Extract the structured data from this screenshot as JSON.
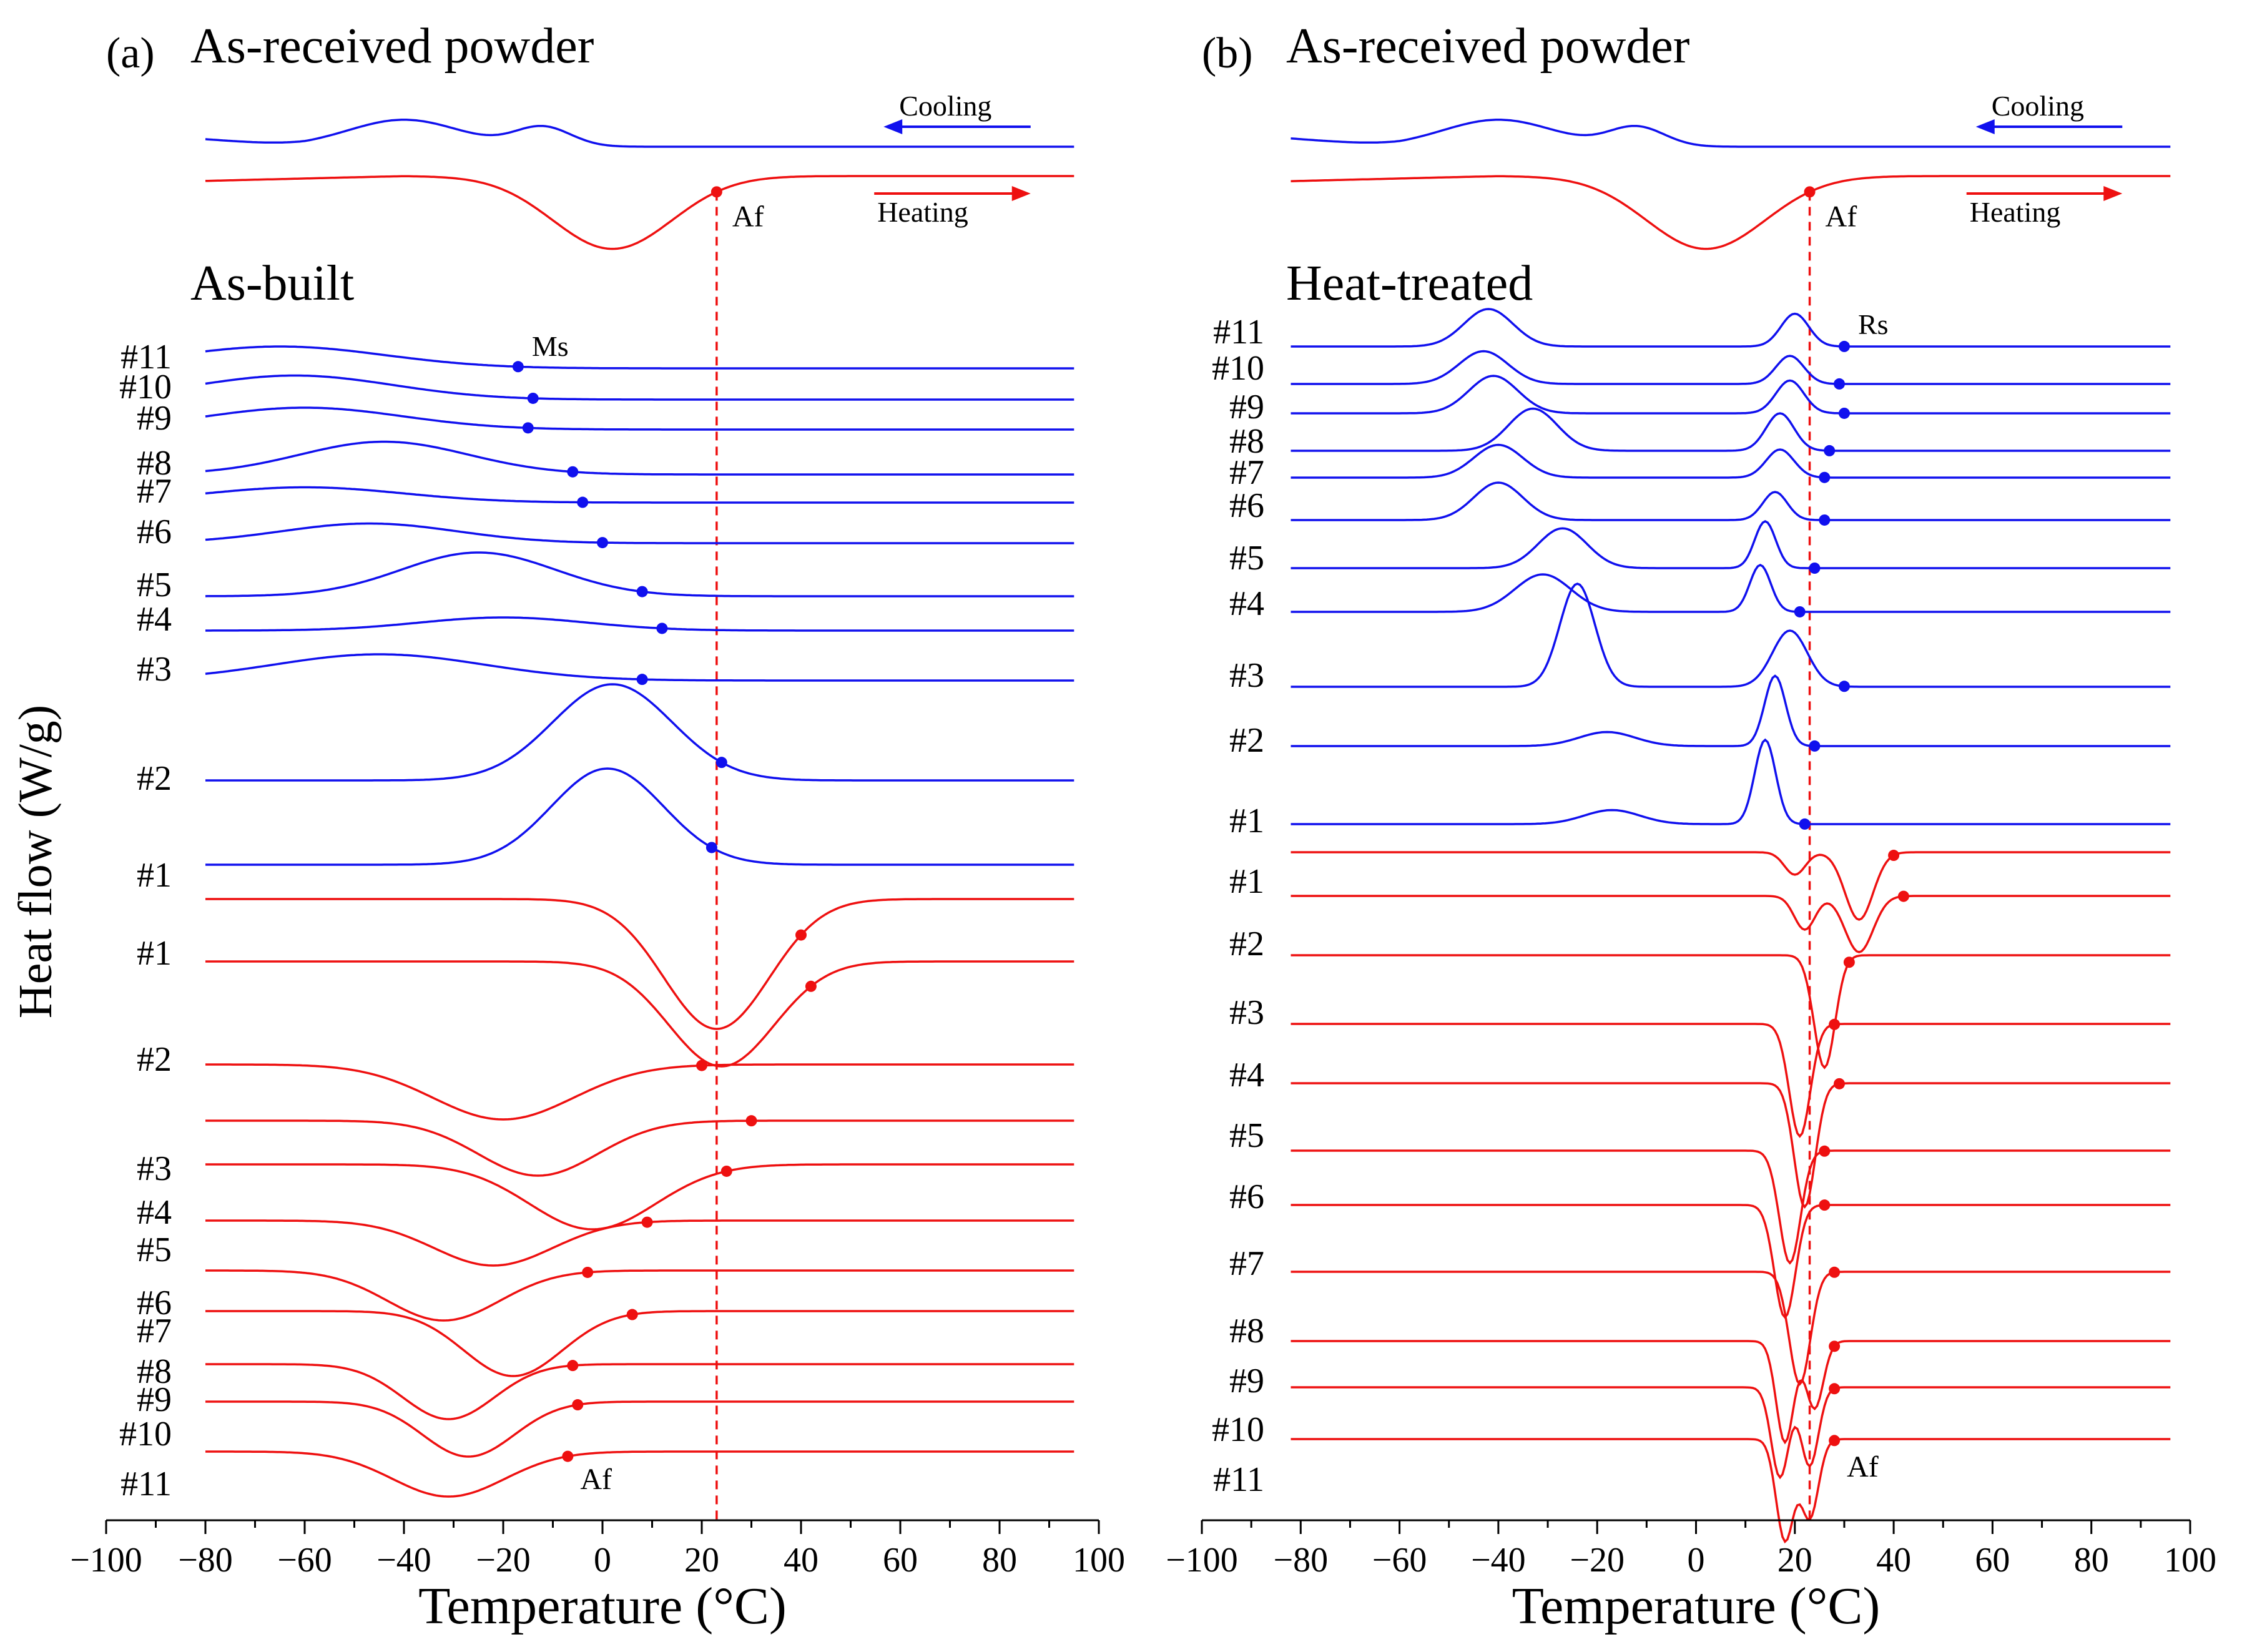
{
  "figure": {
    "ylabel": "Heat flow (W/g)",
    "colors": {
      "cooling": "#1010ee",
      "heating": "#ee1010",
      "reference": "#ee1010"
    }
  },
  "chart_data": [
    {
      "type": "line",
      "panel_label": "(a)",
      "title": "As-received powder",
      "sample_group_label": "As-built",
      "xlabel": "Temperature (°C)",
      "ylabel": "Heat flow (W/g)",
      "xlim": [
        -100,
        100
      ],
      "xticks": [
        "−100",
        "−80",
        "−60",
        "−40",
        "−20",
        "0",
        "20",
        "40",
        "60",
        "80",
        "100"
      ],
      "reference_line_temperature": 23,
      "legend": {
        "cooling_label": "Cooling",
        "heating_label": "Heating",
        "placement": "top-right"
      },
      "powder": {
        "cooling": {
          "peak_temperature": -40,
          "peak_width": 16,
          "shoulder_temperature": -12,
          "shoulder_width": 8,
          "shoulder_amplitude": 0.65,
          "amplitude": 0.9
        },
        "heating": {
          "peak_temperature": 2,
          "peak_width": 17,
          "amplitude": 1.8,
          "af_temperature": 23,
          "af_label": "Af"
        }
      },
      "cooling_series": [
        {
          "name": "#11",
          "peak_temperature": -65,
          "peak_width": 30,
          "amplitude": 0.5,
          "ms_temperature": -17
        },
        {
          "name": "#10",
          "peak_temperature": -62,
          "peak_width": 28,
          "amplitude": 0.55,
          "ms_temperature": -14
        },
        {
          "name": "#9",
          "peak_temperature": -60,
          "peak_width": 28,
          "amplitude": 0.5,
          "ms_temperature": -15
        },
        {
          "name": "#8",
          "peak_temperature": -44,
          "peak_width": 24,
          "amplitude": 0.75,
          "ms_temperature": -6
        },
        {
          "name": "#7",
          "peak_temperature": -60,
          "peak_width": 28,
          "amplitude": 0.35,
          "ms_temperature": -4
        },
        {
          "name": "#6",
          "peak_temperature": -47,
          "peak_width": 25,
          "amplitude": 0.45,
          "ms_temperature": 0
        },
        {
          "name": "#5",
          "peak_temperature": -25,
          "peak_width": 22,
          "amplitude": 1.0,
          "ms_temperature": 8
        },
        {
          "name": "#4",
          "peak_temperature": -20,
          "peak_width": 24,
          "amplitude": 0.3,
          "ms_temperature": 12
        },
        {
          "name": "#3",
          "peak_temperature": -45,
          "peak_width": 30,
          "amplitude": 0.6,
          "ms_temperature": 8
        },
        {
          "name": "#2",
          "peak_temperature": 2,
          "peak_width": 17,
          "amplitude": 2.2,
          "ms_temperature": 24
        },
        {
          "name": "#1",
          "peak_temperature": 1,
          "peak_width": 16,
          "amplitude": 2.2,
          "ms_temperature": 22
        }
      ],
      "heating_series": [
        {
          "name": "#1",
          "peak_temperature": 23,
          "peak_width": 15,
          "amplitude": 2.6,
          "af_temperature": 40
        },
        {
          "name": "#2",
          "peak_temperature": 24,
          "peak_width": 15,
          "amplitude": 2.1,
          "af_temperature": 42
        },
        {
          "name": "#3",
          "peak_temperature": -20,
          "peak_width": 20,
          "amplitude": 1.1,
          "af_temperature": 20
        },
        {
          "name": "#4",
          "peak_temperature": -13,
          "peak_width": 17,
          "amplitude": 1.1,
          "af_temperature": 30
        },
        {
          "name": "#5",
          "peak_temperature": -2,
          "peak_width": 18,
          "amplitude": 1.3,
          "af_temperature": 25
        },
        {
          "name": "#6",
          "peak_temperature": -22,
          "peak_width": 17,
          "amplitude": 0.9,
          "af_temperature": 9
        },
        {
          "name": "#7",
          "peak_temperature": -32,
          "peak_width": 16,
          "amplitude": 1.0,
          "af_temperature": -3
        },
        {
          "name": "#8",
          "peak_temperature": -18,
          "peak_width": 14,
          "amplitude": 1.3,
          "af_temperature": 6
        },
        {
          "name": "#9",
          "peak_temperature": -31,
          "peak_width": 13,
          "amplitude": 1.1,
          "af_temperature": -6
        },
        {
          "name": "#10",
          "peak_temperature": -27,
          "peak_width": 13,
          "amplitude": 1.1,
          "af_temperature": -5
        },
        {
          "name": "#11",
          "peak_temperature": -31,
          "peak_width": 16,
          "amplitude": 0.9,
          "af_temperature": -7
        }
      ],
      "annotations": {
        "cooling_marker_label": "Ms",
        "heating_marker_label": "Af"
      }
    },
    {
      "type": "line",
      "panel_label": "(b)",
      "title": "As-received powder",
      "sample_group_label": "Heat-treated",
      "xlabel": "Temperature (°C)",
      "ylabel": "Heat flow (W/g)",
      "xlim": [
        -100,
        100
      ],
      "xticks": [
        "−100",
        "−80",
        "−60",
        "−40",
        "−20",
        "0",
        "20",
        "40",
        "60",
        "80",
        "100"
      ],
      "reference_line_temperature": 23,
      "legend": {
        "cooling_label": "Cooling",
        "heating_label": "Heating",
        "placement": "top-right"
      },
      "powder": {
        "cooling": {
          "peak_temperature": -40,
          "peak_width": 16,
          "shoulder_temperature": -12,
          "shoulder_width": 8,
          "shoulder_amplitude": 0.65,
          "amplitude": 0.9
        },
        "heating": {
          "peak_temperature": 2,
          "peak_width": 17,
          "amplitude": 1.8,
          "af_temperature": 23,
          "af_label": "Af"
        }
      },
      "cooling_series": [
        {
          "name": "#11",
          "peaks": [
            {
              "temperature": -42,
              "width": 7,
              "amplitude": 0.8
            },
            {
              "temperature": 20,
              "width": 4,
              "amplitude": 0.7
            }
          ],
          "rs_temperature": 30
        },
        {
          "name": "#10",
          "peaks": [
            {
              "temperature": -43,
              "width": 7,
              "amplitude": 0.7
            },
            {
              "temperature": 19,
              "width": 4,
              "amplitude": 0.6
            }
          ],
          "rs_temperature": 29
        },
        {
          "name": "#9",
          "peaks": [
            {
              "temperature": -41,
              "width": 7,
              "amplitude": 0.8
            },
            {
              "temperature": 19,
              "width": 4,
              "amplitude": 0.7
            }
          ],
          "rs_temperature": 30
        },
        {
          "name": "#8",
          "peaks": [
            {
              "temperature": -33,
              "width": 7,
              "amplitude": 0.9
            },
            {
              "temperature": 17,
              "width": 4,
              "amplitude": 0.8
            }
          ],
          "rs_temperature": 27
        },
        {
          "name": "#7",
          "peaks": [
            {
              "temperature": -40,
              "width": 7,
              "amplitude": 0.7
            },
            {
              "temperature": 17,
              "width": 4,
              "amplitude": 0.6
            }
          ],
          "rs_temperature": 26
        },
        {
          "name": "#6",
          "peaks": [
            {
              "temperature": -40,
              "width": 7,
              "amplitude": 0.8
            },
            {
              "temperature": 16,
              "width": 3.5,
              "amplitude": 0.6
            }
          ],
          "rs_temperature": 26
        },
        {
          "name": "#5",
          "peaks": [
            {
              "temperature": -27,
              "width": 7,
              "amplitude": 0.85
            },
            {
              "temperature": 14,
              "width": 3,
              "amplitude": 1.0
            }
          ],
          "rs_temperature": 24
        },
        {
          "name": "#4",
          "peaks": [
            {
              "temperature": -31,
              "width": 8,
              "amplitude": 0.8
            },
            {
              "temperature": 13,
              "width": 3,
              "amplitude": 1.0
            }
          ],
          "rs_temperature": 21
        },
        {
          "name": "#3",
          "peaks": [
            {
              "temperature": -24,
              "width": 5,
              "amplitude": 2.2
            },
            {
              "temperature": 19,
              "width": 5,
              "amplitude": 1.2
            }
          ],
          "rs_temperature": 30
        },
        {
          "name": "#2",
          "peaks": [
            {
              "temperature": -18,
              "width": 8,
              "amplitude": 0.3
            },
            {
              "temperature": 16,
              "width": 3,
              "amplitude": 1.5
            }
          ],
          "rs_temperature": 24
        },
        {
          "name": "#1",
          "peaks": [
            {
              "temperature": -17,
              "width": 8,
              "amplitude": 0.3
            },
            {
              "temperature": 14,
              "width": 3,
              "amplitude": 1.8
            }
          ],
          "rs_temperature": 22
        }
      ],
      "heating_series": [
        {
          "name": "#1",
          "peaks": [
            {
              "temperature": 33,
              "width": 4,
              "amplitude": 1.2
            },
            {
              "temperature": 20,
              "width": 3,
              "amplitude": 0.4
            }
          ],
          "af_temperature": 40
        },
        {
          "name": "#2",
          "peaks": [
            {
              "temperature": 33,
              "width": 4,
              "amplitude": 1.0
            },
            {
              "temperature": 22,
              "width": 3,
              "amplitude": 0.6
            }
          ],
          "af_temperature": 42
        },
        {
          "name": "#3",
          "peaks": [
            {
              "temperature": 26,
              "width": 3,
              "amplitude": 2.0
            }
          ],
          "af_temperature": 31
        },
        {
          "name": "#4",
          "peaks": [
            {
              "temperature": 21,
              "width": 3,
              "amplitude": 2.0
            }
          ],
          "af_temperature": 28
        },
        {
          "name": "#5",
          "peaks": [
            {
              "temperature": 22,
              "width": 3,
              "amplitude": 2.2
            }
          ],
          "af_temperature": 29
        },
        {
          "name": "#6",
          "peaks": [
            {
              "temperature": 19,
              "width": 3,
              "amplitude": 2.0
            }
          ],
          "af_temperature": 26
        },
        {
          "name": "#7",
          "peaks": [
            {
              "temperature": 18,
              "width": 3,
              "amplitude": 2.0
            }
          ],
          "af_temperature": 26
        },
        {
          "name": "#8",
          "peaks": [
            {
              "temperature": 21,
              "width": 3,
              "amplitude": 2.0
            }
          ],
          "af_temperature": 28
        },
        {
          "name": "#9",
          "peaks": [
            {
              "temperature": 18,
              "width": 2.5,
              "amplitude": 1.8
            },
            {
              "temperature": 24,
              "width": 2.5,
              "amplitude": 1.2
            }
          ],
          "af_temperature": 28
        },
        {
          "name": "#10",
          "peaks": [
            {
              "temperature": 17,
              "width": 2.5,
              "amplitude": 1.6
            },
            {
              "temperature": 23,
              "width": 2.5,
              "amplitude": 1.4
            }
          ],
          "af_temperature": 28
        },
        {
          "name": "#11",
          "peaks": [
            {
              "temperature": 18,
              "width": 2.5,
              "amplitude": 1.8
            },
            {
              "temperature": 23,
              "width": 2.5,
              "amplitude": 1.4
            }
          ],
          "af_temperature": 28
        }
      ],
      "annotations": {
        "cooling_marker_label": "Rs",
        "heating_marker_label": "Af"
      }
    }
  ]
}
